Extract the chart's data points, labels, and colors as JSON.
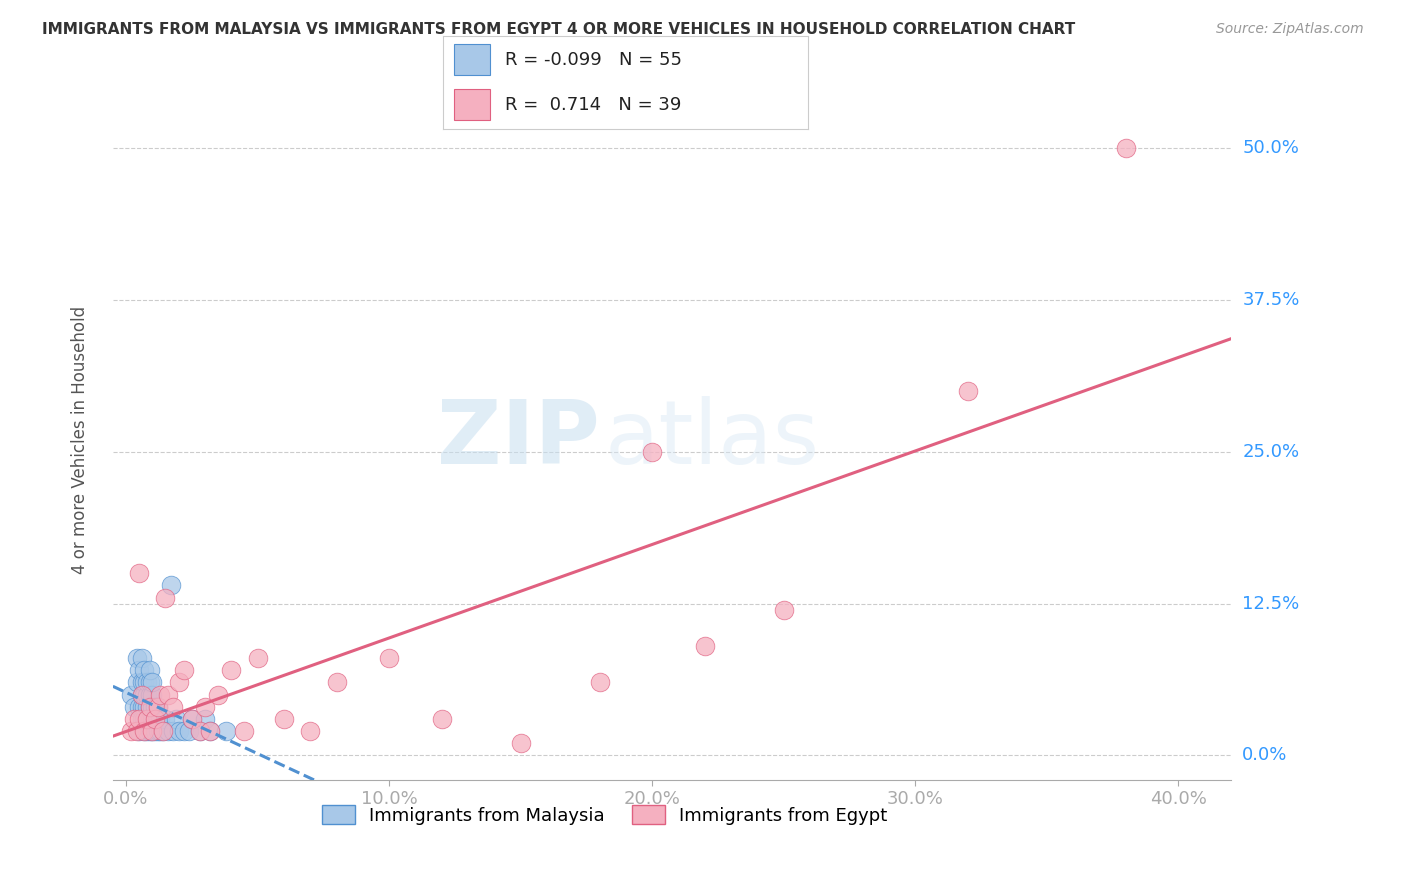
{
  "title": "IMMIGRANTS FROM MALAYSIA VS IMMIGRANTS FROM EGYPT 4 OR MORE VEHICLES IN HOUSEHOLD CORRELATION CHART",
  "source": "Source: ZipAtlas.com",
  "ylabel": "4 or more Vehicles in Household",
  "x_tick_labels": [
    "0.0%",
    "10.0%",
    "20.0%",
    "30.0%",
    "40.0%"
  ],
  "x_tick_values": [
    0.0,
    0.1,
    0.2,
    0.3,
    0.4
  ],
  "y_tick_labels": [
    "0.0%",
    "12.5%",
    "25.0%",
    "37.5%",
    "50.0%"
  ],
  "y_tick_values": [
    0.0,
    0.125,
    0.25,
    0.375,
    0.5
  ],
  "xlim": [
    -0.005,
    0.42
  ],
  "ylim": [
    -0.02,
    0.54
  ],
  "legend_label_malaysia": "Immigrants from Malaysia",
  "legend_label_egypt": "Immigrants from Egypt",
  "R_malaysia": -0.099,
  "N_malaysia": 55,
  "R_egypt": 0.714,
  "N_egypt": 39,
  "color_malaysia": "#a8c8e8",
  "color_egypt": "#f5b0c0",
  "trendline_malaysia_color": "#5090d0",
  "trendline_egypt_color": "#e06080",
  "watermark_zip": "ZIP",
  "watermark_atlas": "atlas",
  "malaysia_x": [
    0.002,
    0.003,
    0.004,
    0.004,
    0.005,
    0.005,
    0.005,
    0.006,
    0.006,
    0.006,
    0.006,
    0.006,
    0.007,
    0.007,
    0.007,
    0.007,
    0.007,
    0.007,
    0.008,
    0.008,
    0.008,
    0.008,
    0.008,
    0.009,
    0.009,
    0.009,
    0.009,
    0.009,
    0.009,
    0.01,
    0.01,
    0.01,
    0.01,
    0.01,
    0.011,
    0.011,
    0.011,
    0.012,
    0.012,
    0.013,
    0.013,
    0.014,
    0.015,
    0.016,
    0.017,
    0.018,
    0.019,
    0.02,
    0.022,
    0.024,
    0.025,
    0.028,
    0.03,
    0.032,
    0.038
  ],
  "malaysia_y": [
    0.05,
    0.04,
    0.06,
    0.08,
    0.02,
    0.04,
    0.07,
    0.03,
    0.04,
    0.05,
    0.06,
    0.08,
    0.02,
    0.03,
    0.04,
    0.05,
    0.06,
    0.07,
    0.02,
    0.03,
    0.04,
    0.05,
    0.06,
    0.02,
    0.03,
    0.04,
    0.05,
    0.06,
    0.07,
    0.02,
    0.03,
    0.04,
    0.05,
    0.06,
    0.02,
    0.03,
    0.04,
    0.02,
    0.04,
    0.02,
    0.03,
    0.02,
    0.03,
    0.02,
    0.14,
    0.02,
    0.03,
    0.02,
    0.02,
    0.02,
    0.03,
    0.02,
    0.03,
    0.02,
    0.02
  ],
  "egypt_x": [
    0.002,
    0.003,
    0.004,
    0.005,
    0.005,
    0.006,
    0.007,
    0.008,
    0.009,
    0.01,
    0.011,
    0.012,
    0.013,
    0.014,
    0.015,
    0.016,
    0.018,
    0.02,
    0.022,
    0.025,
    0.028,
    0.03,
    0.032,
    0.035,
    0.04,
    0.045,
    0.05,
    0.06,
    0.07,
    0.08,
    0.1,
    0.12,
    0.15,
    0.18,
    0.2,
    0.22,
    0.25,
    0.32,
    0.38
  ],
  "egypt_y": [
    0.02,
    0.03,
    0.02,
    0.15,
    0.03,
    0.05,
    0.02,
    0.03,
    0.04,
    0.02,
    0.03,
    0.04,
    0.05,
    0.02,
    0.13,
    0.05,
    0.04,
    0.06,
    0.07,
    0.03,
    0.02,
    0.04,
    0.02,
    0.05,
    0.07,
    0.02,
    0.08,
    0.03,
    0.02,
    0.06,
    0.08,
    0.03,
    0.01,
    0.06,
    0.25,
    0.09,
    0.12,
    0.3,
    0.5
  ]
}
